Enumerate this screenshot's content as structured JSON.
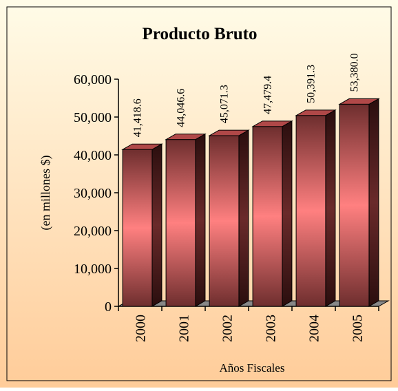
{
  "chart_data": {
    "type": "bar3d",
    "title": "Producto Bruto",
    "y_label": "(en millones $)",
    "x_label": "Años Fiscales",
    "categories": [
      "2000",
      "2001",
      "2002",
      "2003",
      "2004",
      "2005"
    ],
    "values": [
      41418.6,
      44046.6,
      45071.3,
      47479.4,
      50391.3,
      53380.0
    ],
    "value_labels": [
      "41,418.6",
      "44,046.6",
      "45,071.3",
      "47,479.4",
      "50,391.3",
      "53,380.0"
    ],
    "color": "#ff8080",
    "ylim": [
      0,
      60000
    ],
    "yticks": [
      0,
      {
        "value": 10000,
        "label": "10,000"
      },
      {
        "value": 20000,
        "label": "20,000"
      },
      {
        "value": 30000,
        "label": "30,000"
      },
      {
        "value": 40000,
        "label": "40,000"
      },
      {
        "value": 50000,
        "label": "50,000"
      },
      {
        "value": 60000,
        "label": "60,000"
      }
    ]
  }
}
